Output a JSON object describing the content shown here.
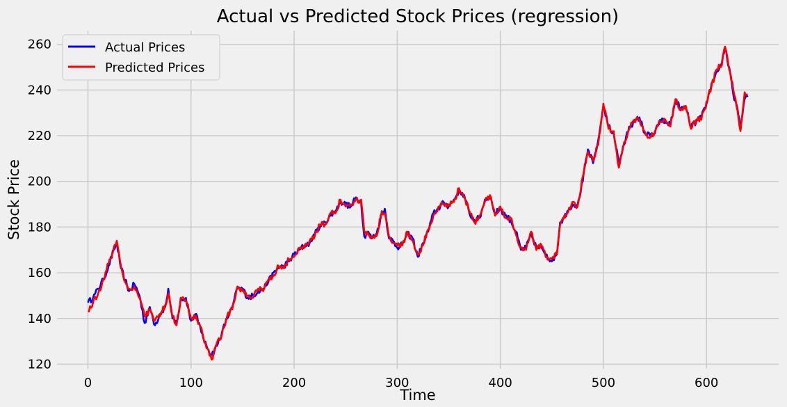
{
  "chart_data": {
    "type": "line",
    "title": "Actual vs Predicted Stock Prices (regression)",
    "xlabel": "Time",
    "ylabel": "Stock Price",
    "xlim": [
      -30,
      670
    ],
    "ylim": [
      118,
      266
    ],
    "xticks": [
      0,
      100,
      200,
      300,
      400,
      500,
      600
    ],
    "yticks": [
      120,
      140,
      160,
      180,
      200,
      220,
      240,
      260
    ],
    "grid": true,
    "legend_position": "top-left",
    "series": [
      {
        "name": "Actual Prices",
        "color": "#0000ff",
        "anchors": [
          [
            0,
            147
          ],
          [
            5,
            149
          ],
          [
            10,
            153
          ],
          [
            15,
            157
          ],
          [
            20,
            163
          ],
          [
            25,
            170
          ],
          [
            28,
            173
          ],
          [
            32,
            162
          ],
          [
            36,
            157
          ],
          [
            40,
            152
          ],
          [
            45,
            155
          ],
          [
            50,
            150
          ],
          [
            55,
            138
          ],
          [
            60,
            145
          ],
          [
            65,
            137
          ],
          [
            70,
            142
          ],
          [
            75,
            145
          ],
          [
            78,
            153
          ],
          [
            82,
            140
          ],
          [
            86,
            138
          ],
          [
            90,
            148
          ],
          [
            95,
            149
          ],
          [
            100,
            139
          ],
          [
            105,
            142
          ],
          [
            110,
            134
          ],
          [
            115,
            128
          ],
          [
            120,
            124
          ],
          [
            125,
            128
          ],
          [
            130,
            134
          ],
          [
            135,
            140
          ],
          [
            140,
            145
          ],
          [
            145,
            153
          ],
          [
            150,
            153
          ],
          [
            155,
            149
          ],
          [
            160,
            150
          ],
          [
            165,
            152
          ],
          [
            170,
            153
          ],
          [
            175,
            156
          ],
          [
            180,
            160
          ],
          [
            185,
            162
          ],
          [
            190,
            163
          ],
          [
            195,
            165
          ],
          [
            200,
            168
          ],
          [
            205,
            170
          ],
          [
            210,
            172
          ],
          [
            215,
            173
          ],
          [
            220,
            177
          ],
          [
            225,
            180
          ],
          [
            230,
            182
          ],
          [
            235,
            185
          ],
          [
            240,
            187
          ],
          [
            245,
            191
          ],
          [
            250,
            190
          ],
          [
            255,
            189
          ],
          [
            260,
            193
          ],
          [
            265,
            191
          ],
          [
            268,
            176
          ],
          [
            272,
            178
          ],
          [
            275,
            175
          ],
          [
            280,
            177
          ],
          [
            285,
            186
          ],
          [
            288,
            188
          ],
          [
            292,
            175
          ],
          [
            296,
            174
          ],
          [
            300,
            171
          ],
          [
            305,
            173
          ],
          [
            310,
            177
          ],
          [
            315,
            175
          ],
          [
            320,
            167
          ],
          [
            325,
            173
          ],
          [
            330,
            178
          ],
          [
            335,
            186
          ],
          [
            340,
            188
          ],
          [
            345,
            191
          ],
          [
            350,
            189
          ],
          [
            355,
            192
          ],
          [
            360,
            196
          ],
          [
            365,
            194
          ],
          [
            370,
            186
          ],
          [
            375,
            183
          ],
          [
            380,
            184
          ],
          [
            385,
            192
          ],
          [
            390,
            193
          ],
          [
            395,
            186
          ],
          [
            400,
            188
          ],
          [
            405,
            185
          ],
          [
            410,
            183
          ],
          [
            415,
            178
          ],
          [
            420,
            170
          ],
          [
            425,
            171
          ],
          [
            430,
            177
          ],
          [
            435,
            171
          ],
          [
            440,
            171
          ],
          [
            445,
            168
          ],
          [
            450,
            165
          ],
          [
            455,
            169
          ],
          [
            458,
            182
          ],
          [
            462,
            184
          ],
          [
            465,
            187
          ],
          [
            470,
            190
          ],
          [
            475,
            190
          ],
          [
            480,
            200
          ],
          [
            485,
            214
          ],
          [
            490,
            208
          ],
          [
            495,
            218
          ],
          [
            500,
            233
          ],
          [
            505,
            224
          ],
          [
            510,
            221
          ],
          [
            515,
            208
          ],
          [
            520,
            216
          ],
          [
            525,
            224
          ],
          [
            530,
            226
          ],
          [
            535,
            228
          ],
          [
            540,
            221
          ],
          [
            545,
            220
          ],
          [
            550,
            221
          ],
          [
            555,
            227
          ],
          [
            560,
            226
          ],
          [
            565,
            225
          ],
          [
            570,
            235
          ],
          [
            575,
            232
          ],
          [
            580,
            232
          ],
          [
            585,
            224
          ],
          [
            590,
            226
          ],
          [
            595,
            228
          ],
          [
            600,
            234
          ],
          [
            605,
            243
          ],
          [
            610,
            248
          ],
          [
            615,
            252
          ],
          [
            618,
            258
          ],
          [
            622,
            250
          ],
          [
            626,
            238
          ],
          [
            630,
            232
          ],
          [
            633,
            223
          ],
          [
            637,
            236
          ],
          [
            640,
            237
          ]
        ]
      },
      {
        "name": "Predicted Prices",
        "color": "#ff0000",
        "anchors": [
          [
            0,
            143
          ],
          [
            5,
            147
          ],
          [
            10,
            151
          ],
          [
            15,
            157
          ],
          [
            20,
            164
          ],
          [
            25,
            171
          ],
          [
            28,
            174
          ],
          [
            32,
            163
          ],
          [
            36,
            156
          ],
          [
            40,
            153
          ],
          [
            45,
            154
          ],
          [
            50,
            149
          ],
          [
            55,
            141
          ],
          [
            60,
            144
          ],
          [
            65,
            139
          ],
          [
            70,
            141
          ],
          [
            75,
            146
          ],
          [
            78,
            151
          ],
          [
            82,
            141
          ],
          [
            86,
            137
          ],
          [
            90,
            149
          ],
          [
            95,
            148
          ],
          [
            100,
            140
          ],
          [
            105,
            141
          ],
          [
            110,
            136
          ],
          [
            115,
            127
          ],
          [
            120,
            122
          ],
          [
            125,
            129
          ],
          [
            130,
            133
          ],
          [
            135,
            141
          ],
          [
            140,
            144
          ],
          [
            145,
            154
          ],
          [
            150,
            152
          ],
          [
            155,
            150
          ],
          [
            160,
            149
          ],
          [
            165,
            153
          ],
          [
            170,
            152
          ],
          [
            175,
            157
          ],
          [
            180,
            159
          ],
          [
            185,
            163
          ],
          [
            190,
            162
          ],
          [
            195,
            166
          ],
          [
            200,
            167
          ],
          [
            205,
            171
          ],
          [
            210,
            171
          ],
          [
            215,
            174
          ],
          [
            220,
            176
          ],
          [
            225,
            181
          ],
          [
            230,
            181
          ],
          [
            235,
            186
          ],
          [
            240,
            186
          ],
          [
            245,
            192
          ],
          [
            250,
            189
          ],
          [
            255,
            190
          ],
          [
            260,
            192
          ],
          [
            265,
            192
          ],
          [
            268,
            178
          ],
          [
            272,
            177
          ],
          [
            275,
            176
          ],
          [
            280,
            176
          ],
          [
            285,
            187
          ],
          [
            288,
            186
          ],
          [
            292,
            176
          ],
          [
            296,
            173
          ],
          [
            300,
            172
          ],
          [
            305,
            172
          ],
          [
            310,
            178
          ],
          [
            315,
            174
          ],
          [
            320,
            168
          ],
          [
            325,
            172
          ],
          [
            330,
            179
          ],
          [
            335,
            185
          ],
          [
            340,
            189
          ],
          [
            345,
            190
          ],
          [
            350,
            190
          ],
          [
            355,
            191
          ],
          [
            360,
            197
          ],
          [
            365,
            193
          ],
          [
            370,
            187
          ],
          [
            375,
            182
          ],
          [
            380,
            185
          ],
          [
            385,
            191
          ],
          [
            390,
            194
          ],
          [
            395,
            185
          ],
          [
            400,
            189
          ],
          [
            405,
            184
          ],
          [
            410,
            184
          ],
          [
            415,
            177
          ],
          [
            420,
            171
          ],
          [
            425,
            170
          ],
          [
            430,
            178
          ],
          [
            435,
            170
          ],
          [
            440,
            172
          ],
          [
            445,
            167
          ],
          [
            450,
            166
          ],
          [
            455,
            168
          ],
          [
            458,
            181
          ],
          [
            462,
            185
          ],
          [
            465,
            186
          ],
          [
            470,
            191
          ],
          [
            475,
            189
          ],
          [
            480,
            202
          ],
          [
            485,
            213
          ],
          [
            490,
            209
          ],
          [
            495,
            216
          ],
          [
            500,
            234
          ],
          [
            505,
            223
          ],
          [
            510,
            222
          ],
          [
            515,
            206
          ],
          [
            520,
            217
          ],
          [
            525,
            223
          ],
          [
            530,
            227
          ],
          [
            535,
            227
          ],
          [
            540,
            222
          ],
          [
            545,
            219
          ],
          [
            550,
            222
          ],
          [
            555,
            226
          ],
          [
            560,
            227
          ],
          [
            565,
            224
          ],
          [
            570,
            236
          ],
          [
            575,
            231
          ],
          [
            580,
            233
          ],
          [
            585,
            223
          ],
          [
            590,
            227
          ],
          [
            595,
            227
          ],
          [
            600,
            235
          ],
          [
            605,
            242
          ],
          [
            610,
            249
          ],
          [
            615,
            251
          ],
          [
            618,
            259
          ],
          [
            622,
            249
          ],
          [
            626,
            240
          ],
          [
            630,
            231
          ],
          [
            633,
            222
          ],
          [
            637,
            239
          ],
          [
            640,
            238
          ]
        ]
      }
    ]
  }
}
